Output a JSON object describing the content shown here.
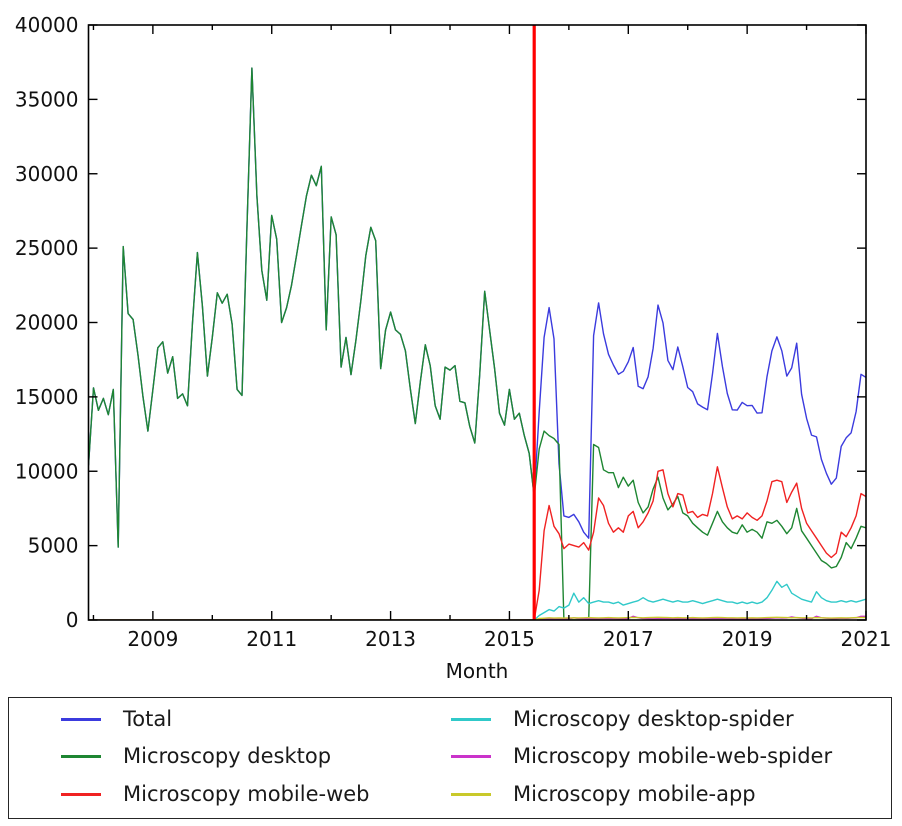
{
  "figure": {
    "xlabel": "Month",
    "background": "#ffffff",
    "text_color": "#111111"
  },
  "axes": {
    "y_ticks": [
      0,
      5000,
      10000,
      15000,
      20000,
      25000,
      30000,
      35000,
      40000
    ],
    "x_major_years": [
      2009,
      2011,
      2013,
      2015,
      2017,
      2019,
      2021
    ],
    "x_minor_years": [
      2008,
      2010,
      2012,
      2014,
      2016,
      2018,
      2020
    ],
    "y_range": [
      0,
      40000
    ],
    "x_range": [
      "2007-12",
      "2021-01"
    ]
  },
  "legend": {
    "entries": [
      {
        "label": "Total",
        "color": "#3b3bde"
      },
      {
        "label": "Microscopy desktop",
        "color": "#1e8632"
      },
      {
        "label": "Microscopy mobile-web",
        "color": "#f02222"
      },
      {
        "label": "Microscopy desktop-spider",
        "color": "#30c9c9"
      },
      {
        "label": "Microscopy mobile-web-spider",
        "color": "#ca33ca"
      },
      {
        "label": "Microscopy mobile-app",
        "color": "#c9c92a"
      }
    ]
  },
  "chart_data": {
    "type": "line",
    "title": "",
    "xlabel": "Month",
    "ylabel": "",
    "ylim": [
      0,
      40000
    ],
    "grid": false,
    "legend_position": "bottom",
    "annotations": [
      {
        "type": "vline",
        "x_month": "2015-06",
        "color": "#ff0000",
        "linewidth": 3.2
      }
    ],
    "x_months": [
      "2007-12",
      "2008-01",
      "2008-02",
      "2008-03",
      "2008-04",
      "2008-05",
      "2008-06",
      "2008-07",
      "2008-08",
      "2008-09",
      "2008-10",
      "2008-11",
      "2008-12",
      "2009-01",
      "2009-02",
      "2009-03",
      "2009-04",
      "2009-05",
      "2009-06",
      "2009-07",
      "2009-08",
      "2009-09",
      "2009-10",
      "2009-11",
      "2009-12",
      "2010-01",
      "2010-02",
      "2010-03",
      "2010-04",
      "2010-05",
      "2010-06",
      "2010-07",
      "2010-08",
      "2010-09",
      "2010-10",
      "2010-11",
      "2010-12",
      "2011-01",
      "2011-02",
      "2011-03",
      "2011-04",
      "2011-05",
      "2011-06",
      "2011-07",
      "2011-08",
      "2011-09",
      "2011-10",
      "2011-11",
      "2011-12",
      "2012-01",
      "2012-02",
      "2012-03",
      "2012-04",
      "2012-05",
      "2012-06",
      "2012-07",
      "2012-08",
      "2012-09",
      "2012-10",
      "2012-11",
      "2012-12",
      "2013-01",
      "2013-02",
      "2013-03",
      "2013-04",
      "2013-05",
      "2013-06",
      "2013-07",
      "2013-08",
      "2013-09",
      "2013-10",
      "2013-11",
      "2013-12",
      "2014-01",
      "2014-02",
      "2014-03",
      "2014-04",
      "2014-05",
      "2014-06",
      "2014-07",
      "2014-08",
      "2014-09",
      "2014-10",
      "2014-11",
      "2014-12",
      "2015-01",
      "2015-02",
      "2015-03",
      "2015-04",
      "2015-05",
      "2015-06",
      "2015-07",
      "2015-08",
      "2015-09",
      "2015-10",
      "2015-11",
      "2015-12",
      "2016-01",
      "2016-02",
      "2016-03",
      "2016-04",
      "2016-05",
      "2016-06",
      "2016-07",
      "2016-08",
      "2016-09",
      "2016-10",
      "2016-11",
      "2016-12",
      "2017-01",
      "2017-02",
      "2017-03",
      "2017-04",
      "2017-05",
      "2017-06",
      "2017-07",
      "2017-08",
      "2017-09",
      "2017-10",
      "2017-11",
      "2017-12",
      "2018-01",
      "2018-02",
      "2018-03",
      "2018-04",
      "2018-05",
      "2018-06",
      "2018-07",
      "2018-08",
      "2018-09",
      "2018-10",
      "2018-11",
      "2018-12",
      "2019-01",
      "2019-02",
      "2019-03",
      "2019-04",
      "2019-05",
      "2019-06",
      "2019-07",
      "2019-08",
      "2019-09",
      "2019-10",
      "2019-11",
      "2019-12",
      "2020-01",
      "2020-02",
      "2020-03",
      "2020-04",
      "2020-05",
      "2020-06",
      "2020-07",
      "2020-08",
      "2020-09",
      "2020-10",
      "2020-11",
      "2020-12",
      "2021-01"
    ],
    "series": [
      {
        "name": "Total",
        "color": "#3b3bde",
        "values": [
          10400,
          15600,
          14100,
          14900,
          13800,
          15500,
          4900,
          25100,
          20600,
          20200,
          17800,
          15000,
          12700,
          15500,
          18300,
          18700,
          16600,
          17700,
          14900,
          15200,
          14400,
          20000,
          24700,
          21100,
          16400,
          19000,
          22000,
          21300,
          21900,
          19900,
          15500,
          15100,
          26500,
          37100,
          28500,
          23500,
          21500,
          27200,
          25600,
          20000,
          21000,
          22500,
          24500,
          26500,
          28500,
          29900,
          29200,
          30500,
          19500,
          27100,
          25900,
          17000,
          19000,
          16500,
          18800,
          21500,
          24500,
          26400,
          25500,
          16900,
          19500,
          20700,
          19500,
          19200,
          18100,
          15500,
          13200,
          16000,
          18500,
          17100,
          14400,
          13500,
          17000,
          16800,
          17100,
          14700,
          14600,
          13000,
          11900,
          16500,
          22100,
          19500,
          16900,
          13900,
          13100,
          15500,
          13500,
          13900,
          12400,
          11200,
          8300,
          14000,
          19000,
          21000,
          18900,
          10500,
          7000,
          6900,
          7100,
          6600,
          5900,
          5500,
          19120,
          21320,
          19240,
          17860,
          17140,
          16520,
          16720,
          17360,
          18320,
          15710,
          15550,
          16350,
          18250,
          21170,
          19970,
          17450,
          16830,
          18350,
          17030,
          15630,
          15350,
          14530,
          14310,
          14130,
          16550,
          19270,
          17050,
          15230,
          14130,
          14110,
          14630,
          14410,
          14430,
          13910,
          13930,
          16360,
          18090,
          19030,
          18100,
          16400,
          16950,
          18610,
          15170,
          13550,
          12430,
          12310,
          10800,
          9860,
          9130,
          9540,
          11670,
          12250,
          12580,
          14010,
          16520,
          16310
        ]
      },
      {
        "name": "Microscopy desktop",
        "color": "#1e8632",
        "values": [
          10400,
          15600,
          14100,
          14900,
          13800,
          15500,
          4900,
          25100,
          20600,
          20200,
          17800,
          15000,
          12700,
          15500,
          18300,
          18700,
          16600,
          17700,
          14900,
          15200,
          14400,
          20000,
          24700,
          21100,
          16400,
          19000,
          22000,
          21300,
          21900,
          19900,
          15500,
          15100,
          26500,
          37100,
          28500,
          23500,
          21500,
          27200,
          25600,
          20000,
          21000,
          22500,
          24500,
          26500,
          28500,
          29900,
          29200,
          30500,
          19500,
          27100,
          25900,
          17000,
          19000,
          16500,
          18800,
          21500,
          24500,
          26400,
          25500,
          16900,
          19500,
          20700,
          19500,
          19200,
          18100,
          15500,
          13200,
          16000,
          18500,
          17100,
          14400,
          13500,
          17000,
          16800,
          17100,
          14700,
          14600,
          13000,
          11900,
          16500,
          22100,
          19500,
          16900,
          13900,
          13100,
          15500,
          13500,
          13900,
          12400,
          11200,
          8300,
          11500,
          12700,
          12400,
          12200,
          11800,
          0,
          0,
          0,
          0,
          0,
          0,
          11800,
          11600,
          10100,
          9900,
          9900,
          8900,
          9600,
          9000,
          9400,
          7900,
          7200,
          7600,
          8800,
          9600,
          8200,
          7400,
          7800,
          8300,
          7200,
          7000,
          6500,
          6200,
          5900,
          5700,
          6500,
          7300,
          6600,
          6200,
          5900,
          5800,
          6400,
          5900,
          6100,
          5900,
          5500,
          6600,
          6500,
          6700,
          6300,
          5800,
          6200,
          7500,
          6000,
          5500,
          5000,
          4500,
          4000,
          3800,
          3500,
          3600,
          4200,
          5200,
          4800,
          5500,
          6300,
          6200
        ]
      },
      {
        "name": "Microscopy mobile-web",
        "color": "#f02222",
        "values": [
          0,
          0,
          0,
          0,
          0,
          0,
          0,
          0,
          0,
          0,
          0,
          0,
          0,
          0,
          0,
          0,
          0,
          0,
          0,
          0,
          0,
          0,
          0,
          0,
          0,
          0,
          0,
          0,
          0,
          0,
          0,
          0,
          0,
          0,
          0,
          0,
          0,
          0,
          0,
          0,
          0,
          0,
          0,
          0,
          0,
          0,
          0,
          0,
          0,
          0,
          0,
          0,
          0,
          0,
          0,
          0,
          0,
          0,
          0,
          0,
          0,
          0,
          0,
          0,
          0,
          0,
          0,
          0,
          0,
          0,
          0,
          0,
          0,
          0,
          0,
          0,
          0,
          0,
          0,
          0,
          0,
          0,
          0,
          0,
          0,
          0,
          0,
          0,
          0,
          0,
          0,
          2000,
          6000,
          7700,
          6300,
          5800,
          4800,
          5100,
          5000,
          4900,
          5200,
          4700,
          5900,
          8200,
          7700,
          6500,
          5900,
          6200,
          5900,
          7000,
          7300,
          6200,
          6600,
          7200,
          8000,
          10000,
          10100,
          8500,
          7600,
          8500,
          8400,
          7200,
          7300,
          6900,
          7100,
          7000,
          8500,
          10300,
          8900,
          7600,
          6800,
          7000,
          6800,
          7200,
          6900,
          6700,
          7000,
          8000,
          9300,
          9400,
          9300,
          7900,
          8600,
          9200,
          7500,
          6500,
          6000,
          5500,
          5000,
          4500,
          4200,
          4500,
          5900,
          5600,
          6200,
          7000,
          8500,
          8300
        ]
      },
      {
        "name": "Microscopy desktop-spider",
        "color": "#30c9c9",
        "values": [
          0,
          0,
          0,
          0,
          0,
          0,
          0,
          0,
          0,
          0,
          0,
          0,
          0,
          0,
          0,
          0,
          0,
          0,
          0,
          0,
          0,
          0,
          0,
          0,
          0,
          0,
          0,
          0,
          0,
          0,
          0,
          0,
          0,
          0,
          0,
          0,
          0,
          0,
          0,
          0,
          0,
          0,
          0,
          0,
          0,
          0,
          0,
          0,
          0,
          0,
          0,
          0,
          0,
          0,
          0,
          0,
          0,
          0,
          0,
          0,
          0,
          0,
          0,
          0,
          0,
          0,
          0,
          0,
          0,
          0,
          0,
          0,
          0,
          0,
          0,
          0,
          0,
          0,
          0,
          0,
          0,
          0,
          0,
          0,
          0,
          0,
          0,
          0,
          0,
          0,
          0,
          300,
          500,
          700,
          600,
          900,
          800,
          1000,
          1800,
          1200,
          1500,
          1100,
          1200,
          1300,
          1200,
          1200,
          1100,
          1200,
          1000,
          1100,
          1200,
          1300,
          1500,
          1300,
          1200,
          1300,
          1400,
          1300,
          1200,
          1300,
          1200,
          1200,
          1300,
          1200,
          1100,
          1200,
          1300,
          1400,
          1300,
          1200,
          1200,
          1100,
          1200,
          1100,
          1200,
          1100,
          1200,
          1500,
          2000,
          2600,
          2200,
          2400,
          1800,
          1600,
          1400,
          1300,
          1200,
          1900,
          1500,
          1300,
          1200,
          1200,
          1300,
          1200,
          1300,
          1200,
          1300,
          1400
        ]
      },
      {
        "name": "Microscopy mobile-web-spider",
        "color": "#ca33ca",
        "values": [
          0,
          0,
          0,
          0,
          0,
          0,
          0,
          0,
          0,
          0,
          0,
          0,
          0,
          0,
          0,
          0,
          0,
          0,
          0,
          0,
          0,
          0,
          0,
          0,
          0,
          0,
          0,
          0,
          0,
          0,
          0,
          0,
          0,
          0,
          0,
          0,
          0,
          0,
          0,
          0,
          0,
          0,
          0,
          0,
          0,
          0,
          0,
          0,
          0,
          0,
          0,
          0,
          0,
          0,
          0,
          0,
          0,
          0,
          0,
          0,
          0,
          0,
          0,
          0,
          0,
          0,
          0,
          0,
          0,
          0,
          0,
          0,
          0,
          0,
          0,
          0,
          0,
          0,
          0,
          0,
          0,
          0,
          0,
          0,
          0,
          0,
          0,
          0,
          0,
          0,
          0,
          50,
          60,
          70,
          60,
          80,
          70,
          80,
          150,
          100,
          90,
          80,
          70,
          80,
          90,
          100,
          90,
          80,
          70,
          100,
          250,
          150,
          100,
          90,
          80,
          90,
          100,
          90,
          80,
          90,
          80,
          80,
          90,
          80,
          70,
          80,
          90,
          100,
          90,
          80,
          80,
          70,
          80,
          70,
          80,
          70,
          80,
          100,
          120,
          150,
          130,
          140,
          200,
          150,
          120,
          100,
          90,
          250,
          150,
          120,
          100,
          100,
          120,
          110,
          130,
          150,
          250,
          250
        ]
      },
      {
        "name": "Microscopy mobile-app",
        "color": "#c9c92a",
        "values": [
          0,
          0,
          0,
          0,
          0,
          0,
          0,
          0,
          0,
          0,
          0,
          0,
          0,
          0,
          0,
          0,
          0,
          0,
          0,
          0,
          0,
          0,
          0,
          0,
          0,
          0,
          0,
          0,
          0,
          0,
          0,
          0,
          0,
          0,
          0,
          0,
          0,
          0,
          0,
          0,
          0,
          0,
          0,
          0,
          0,
          0,
          0,
          0,
          0,
          0,
          0,
          0,
          0,
          0,
          0,
          0,
          0,
          0,
          0,
          0,
          0,
          0,
          0,
          0,
          0,
          0,
          0,
          0,
          0,
          0,
          0,
          0,
          0,
          0,
          0,
          0,
          0,
          0,
          0,
          0,
          0,
          0,
          0,
          0,
          0,
          0,
          0,
          0,
          0,
          0,
          0,
          100,
          120,
          150,
          130,
          140,
          130,
          140,
          150,
          140,
          150,
          160,
          150,
          140,
          150,
          160,
          150,
          140,
          150,
          160,
          170,
          160,
          150,
          160,
          170,
          180,
          170,
          160,
          150,
          160,
          150,
          150,
          160,
          150,
          140,
          150,
          160,
          170,
          160,
          150,
          150,
          140,
          150,
          140,
          150,
          140,
          150,
          160,
          170,
          180,
          170,
          160,
          150,
          160,
          150,
          150,
          140,
          160,
          150,
          140,
          130,
          140,
          150,
          140,
          150,
          160,
          170,
          160
        ]
      }
    ]
  }
}
